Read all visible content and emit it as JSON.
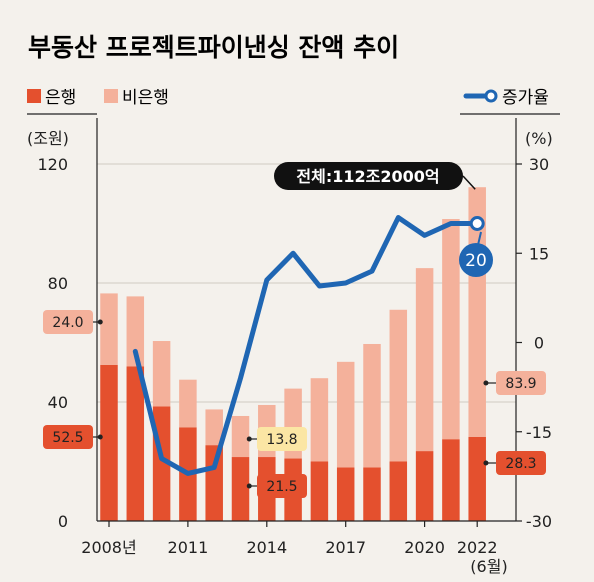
{
  "chart_data": {
    "type": "bar",
    "title": "부동산 프로젝트파이낸싱 잔액 추이",
    "legend": {
      "bank": "은행",
      "nonbank": "비은행",
      "growth": "증가율"
    },
    "left_axis": {
      "unit": "(조원)",
      "min": 0,
      "max": 120,
      "ticks": [
        {
          "value": 0,
          "label": "0"
        },
        {
          "value": 40,
          "label": "40"
        },
        {
          "value": 80,
          "label": "80"
        },
        {
          "value": 120,
          "label": "120"
        }
      ]
    },
    "right_axis": {
      "unit": "(%)",
      "min": -30,
      "max": 30,
      "ticks": [
        {
          "value": -30,
          "label": "-30"
        },
        {
          "value": -15,
          "label": "-15"
        },
        {
          "value": 0,
          "label": "0"
        },
        {
          "value": 15,
          "label": "15"
        },
        {
          "value": 30,
          "label": "30"
        }
      ]
    },
    "x_labels": [
      {
        "index": 0,
        "label": "2008년"
      },
      {
        "index": 3,
        "label": "2011"
      },
      {
        "index": 6,
        "label": "2014"
      },
      {
        "index": 9,
        "label": "2017"
      },
      {
        "index": 12,
        "label": "2020"
      },
      {
        "index": 14,
        "label": "2022"
      }
    ],
    "x_sublabel": "(6월)",
    "series": [
      {
        "name": "은행",
        "color": "#e4502e",
        "values": [
          52.5,
          52,
          38.5,
          31.5,
          25.5,
          21.5,
          21.5,
          21,
          20,
          18,
          18,
          20,
          23.5,
          27.5,
          28.3
        ]
      },
      {
        "name": "비은행",
        "color": "#f4b19b",
        "values": [
          24.0,
          23.5,
          22,
          16,
          12,
          13.8,
          17.5,
          23.5,
          28,
          35.5,
          41.5,
          51,
          61.5,
          74,
          83.9
        ]
      },
      {
        "name": "증가율",
        "color": "#1f66b3",
        "values": [
          null,
          -1.5,
          -19.5,
          -22,
          -21,
          -6,
          10.5,
          15,
          9.5,
          10,
          12,
          21,
          18,
          20,
          20
        ]
      }
    ],
    "total_callout": "전체:112조2000억",
    "growth_marker": "20",
    "bar_callouts": [
      {
        "index": 0,
        "series": "bank",
        "text": "52.5"
      },
      {
        "index": 0,
        "series": "nonbank",
        "text": "24.0"
      },
      {
        "index": 5,
        "series": "bank",
        "text": "21.5"
      },
      {
        "index": 5,
        "series": "nonbank",
        "text": "13.8"
      },
      {
        "index": 14,
        "series": "bank",
        "text": "28.3"
      },
      {
        "index": 14,
        "series": "nonbank",
        "text": "83.9"
      }
    ]
  }
}
